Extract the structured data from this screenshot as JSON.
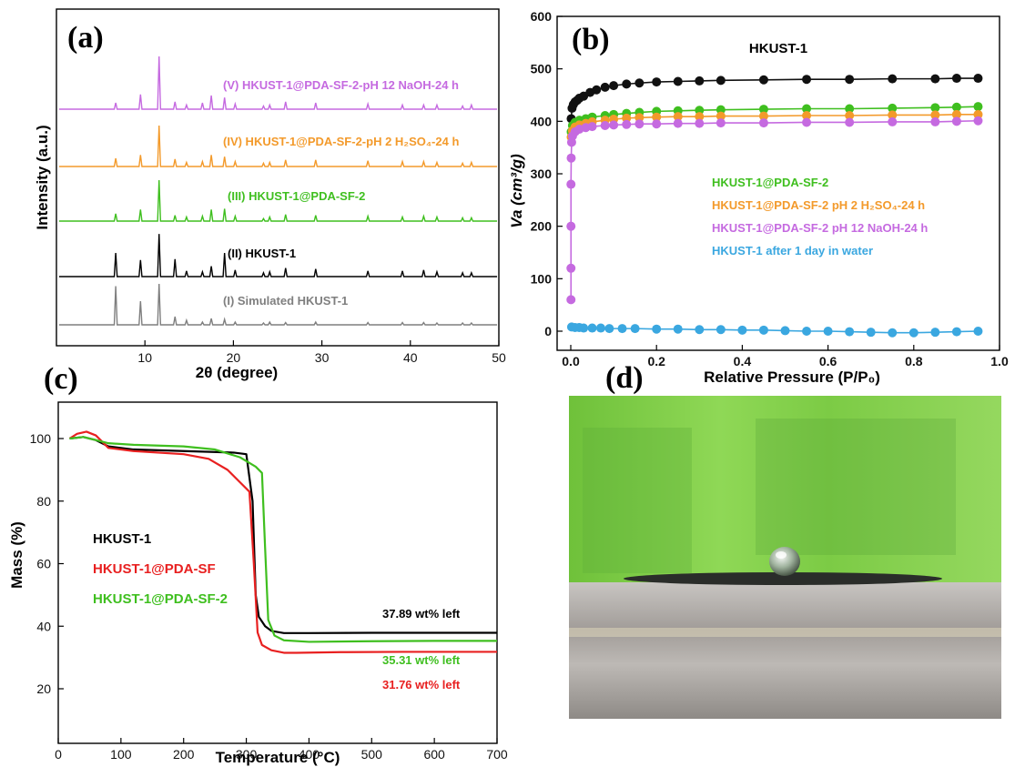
{
  "panels": {
    "a": {
      "label": "(a)"
    },
    "b": {
      "label": "(b)"
    },
    "c": {
      "label": "(c)"
    },
    "d": {
      "label": "(d)"
    }
  },
  "chart_data": [
    {
      "id": "xrd",
      "type": "line",
      "xlabel": "2θ (degree)",
      "ylabel": "Intensity (a.u.)",
      "xlim": [
        0,
        50
      ],
      "xticks": [
        10,
        20,
        30,
        40,
        50
      ],
      "peak_positions": [
        6.7,
        9.5,
        11.6,
        13.4,
        14.7,
        16.5,
        17.5,
        19.0,
        20.2,
        23.4,
        24.1,
        25.9,
        29.3,
        35.2,
        39.1,
        41.5,
        43.0,
        45.9,
        46.9
      ],
      "series": [
        {
          "name": "(I) Simulated HKUST-1",
          "color": "#7f7f7f",
          "relative_intensities": [
            0.85,
            0.52,
            0.9,
            0.18,
            0.1,
            0.06,
            0.14,
            0.12,
            0.06,
            0.04,
            0.06,
            0.05,
            0.06,
            0.05,
            0.05,
            0.05,
            0.04,
            0.04,
            0.04
          ]
        },
        {
          "name": "(II) HKUST-1",
          "color": "#000000",
          "relative_intensities": [
            0.5,
            0.35,
            0.9,
            0.37,
            0.12,
            0.1,
            0.22,
            0.5,
            0.14,
            0.08,
            0.1,
            0.18,
            0.16,
            0.12,
            0.12,
            0.14,
            0.1,
            0.08,
            0.08
          ]
        },
        {
          "name": "(III) HKUST-1@PDA-SF-2",
          "color": "#3fbf1f",
          "relative_intensities": [
            0.18,
            0.28,
            1.0,
            0.14,
            0.1,
            0.12,
            0.28,
            0.3,
            0.12,
            0.06,
            0.1,
            0.16,
            0.14,
            0.12,
            0.1,
            0.12,
            0.1,
            0.08,
            0.08
          ]
        },
        {
          "name": "(IV) HKUST-1@PDA-SF-2-pH 2 H₂SO₄-24 h",
          "color": "#f39a2b",
          "relative_intensities": [
            0.2,
            0.28,
            1.0,
            0.18,
            0.1,
            0.12,
            0.28,
            0.24,
            0.12,
            0.08,
            0.1,
            0.16,
            0.16,
            0.14,
            0.12,
            0.12,
            0.1,
            0.08,
            0.1
          ]
        },
        {
          "name": "(V) HKUST-1@PDA-SF-2-pH 12 NaOH-24 h",
          "color": "#c56ae0",
          "relative_intensities": [
            0.12,
            0.28,
            1.0,
            0.14,
            0.08,
            0.12,
            0.26,
            0.22,
            0.1,
            0.06,
            0.08,
            0.14,
            0.12,
            0.1,
            0.08,
            0.08,
            0.08,
            0.06,
            0.08
          ]
        }
      ]
    },
    {
      "id": "isotherm",
      "type": "scatter",
      "title": "HKUST-1",
      "xlabel": "Relative Pressure (P/P₀)",
      "ylabel": "Va (cm³/g)",
      "xlim": [
        0,
        1.0
      ],
      "ylim": [
        0,
        600
      ],
      "xticks": [
        0.0,
        0.2,
        0.4,
        0.6,
        0.8,
        1.0
      ],
      "yticks": [
        0,
        100,
        200,
        300,
        400,
        500,
        600
      ],
      "series": [
        {
          "name": "HKUST-1",
          "color": "#111111",
          "x": [
            0.001,
            0.003,
            0.006,
            0.01,
            0.015,
            0.02,
            0.03,
            0.045,
            0.06,
            0.08,
            0.1,
            0.13,
            0.16,
            0.2,
            0.25,
            0.3,
            0.35,
            0.45,
            0.55,
            0.65,
            0.75,
            0.85,
            0.9,
            0.95
          ],
          "y": [
            405,
            425,
            432,
            437,
            440,
            444,
            448,
            455,
            460,
            465,
            468,
            471,
            473,
            475,
            476,
            477,
            478,
            479,
            480,
            480,
            481,
            481,
            482,
            482
          ]
        },
        {
          "name": "HKUST-1@PDA-SF-2",
          "color": "#3fbf1f",
          "x": [
            0.001,
            0.004,
            0.01,
            0.02,
            0.035,
            0.05,
            0.08,
            0.1,
            0.13,
            0.16,
            0.2,
            0.25,
            0.3,
            0.35,
            0.45,
            0.55,
            0.65,
            0.75,
            0.85,
            0.9,
            0.95
          ],
          "y": [
            380,
            392,
            398,
            402,
            405,
            408,
            411,
            413,
            415,
            417,
            419,
            420,
            421,
            422,
            423,
            424,
            424,
            425,
            426,
            427,
            428
          ]
        },
        {
          "name": "HKUST-1@PDA-SF-2 pH 2 H₂SO₄-24 h",
          "color": "#f39a2b",
          "x": [
            0.001,
            0.004,
            0.01,
            0.02,
            0.035,
            0.05,
            0.08,
            0.1,
            0.13,
            0.16,
            0.2,
            0.25,
            0.3,
            0.35,
            0.45,
            0.55,
            0.65,
            0.75,
            0.85,
            0.9,
            0.95
          ],
          "y": [
            370,
            382,
            389,
            393,
            396,
            399,
            402,
            404,
            406,
            407,
            408,
            409,
            409,
            410,
            410,
            411,
            411,
            412,
            412,
            413,
            413
          ]
        },
        {
          "name": "HKUST-1@PDA-SF-2 pH 12 NaOH-24 h",
          "color": "#c56ae0",
          "x": [
            0.0005,
            0.0005,
            0.0005,
            0.0005,
            0.001,
            0.002,
            0.004,
            0.01,
            0.02,
            0.035,
            0.05,
            0.08,
            0.1,
            0.13,
            0.16,
            0.2,
            0.25,
            0.3,
            0.35,
            0.45,
            0.55,
            0.65,
            0.75,
            0.85,
            0.9,
            0.95
          ],
          "y": [
            60,
            120,
            200,
            280,
            330,
            360,
            372,
            380,
            385,
            388,
            390,
            392,
            393,
            394,
            395,
            395,
            396,
            396,
            397,
            397,
            398,
            398,
            399,
            399,
            400,
            401
          ]
        },
        {
          "name": "HKUST-1 after 1 day in water",
          "color": "#3aa7e0",
          "x": [
            0.002,
            0.01,
            0.02,
            0.03,
            0.05,
            0.07,
            0.09,
            0.12,
            0.15,
            0.2,
            0.25,
            0.3,
            0.35,
            0.4,
            0.45,
            0.5,
            0.55,
            0.6,
            0.65,
            0.7,
            0.75,
            0.8,
            0.85,
            0.9,
            0.95
          ],
          "y": [
            8,
            7,
            7,
            6,
            6,
            6,
            5,
            5,
            5,
            4,
            4,
            3,
            3,
            2,
            2,
            1,
            0,
            0,
            -1,
            -2,
            -3,
            -3,
            -2,
            -1,
            0
          ]
        }
      ]
    },
    {
      "id": "tga",
      "type": "line",
      "xlabel": "Temperature (°C)",
      "ylabel": "Mass (%)",
      "xlim": [
        0,
        700
      ],
      "ylim": [
        10,
        105
      ],
      "xticks": [
        0,
        100,
        200,
        300,
        400,
        500,
        600,
        700
      ],
      "yticks": [
        20,
        40,
        60,
        80,
        100
      ],
      "series": [
        {
          "name": "HKUST-1",
          "color": "#000000",
          "x": [
            18,
            40,
            60,
            80,
            120,
            200,
            280,
            300,
            310,
            315,
            320,
            330,
            340,
            360,
            400,
            500,
            600,
            700
          ],
          "y": [
            100,
            100.5,
            99.5,
            97.5,
            96.5,
            96,
            95.5,
            95,
            80,
            50,
            43,
            40,
            38.5,
            37.8,
            37.8,
            37.9,
            37.9,
            37.9
          ]
        },
        {
          "name": "HKUST-1@PDA-SF",
          "color": "#e82020",
          "x": [
            18,
            30,
            45,
            60,
            80,
            120,
            200,
            240,
            270,
            290,
            305,
            312,
            318,
            325,
            340,
            360,
            380,
            450,
            550,
            700
          ],
          "y": [
            100,
            101.5,
            102.2,
            101,
            97,
            96,
            95,
            93.5,
            90,
            86,
            83,
            60,
            38,
            34,
            32.3,
            31.5,
            31.5,
            31.7,
            31.8,
            31.8
          ]
        },
        {
          "name": "HKUST-1@PDA-SF-2",
          "color": "#3fbf1f",
          "x": [
            18,
            40,
            60,
            80,
            120,
            200,
            250,
            290,
            315,
            325,
            330,
            335,
            345,
            360,
            400,
            500,
            600,
            700
          ],
          "y": [
            100,
            100.5,
            99.5,
            98.5,
            98,
            97.5,
            96.5,
            94,
            91,
            89,
            65,
            42,
            37,
            35.5,
            35,
            35.2,
            35.3,
            35.3
          ]
        }
      ],
      "legend": [
        "HKUST-1",
        "HKUST-1@PDA-SF",
        "HKUST-1@PDA-SF-2"
      ],
      "annotations": [
        "37.89 wt% left",
        "35.31 wt% left",
        "31.76 wt% left"
      ]
    }
  ]
}
